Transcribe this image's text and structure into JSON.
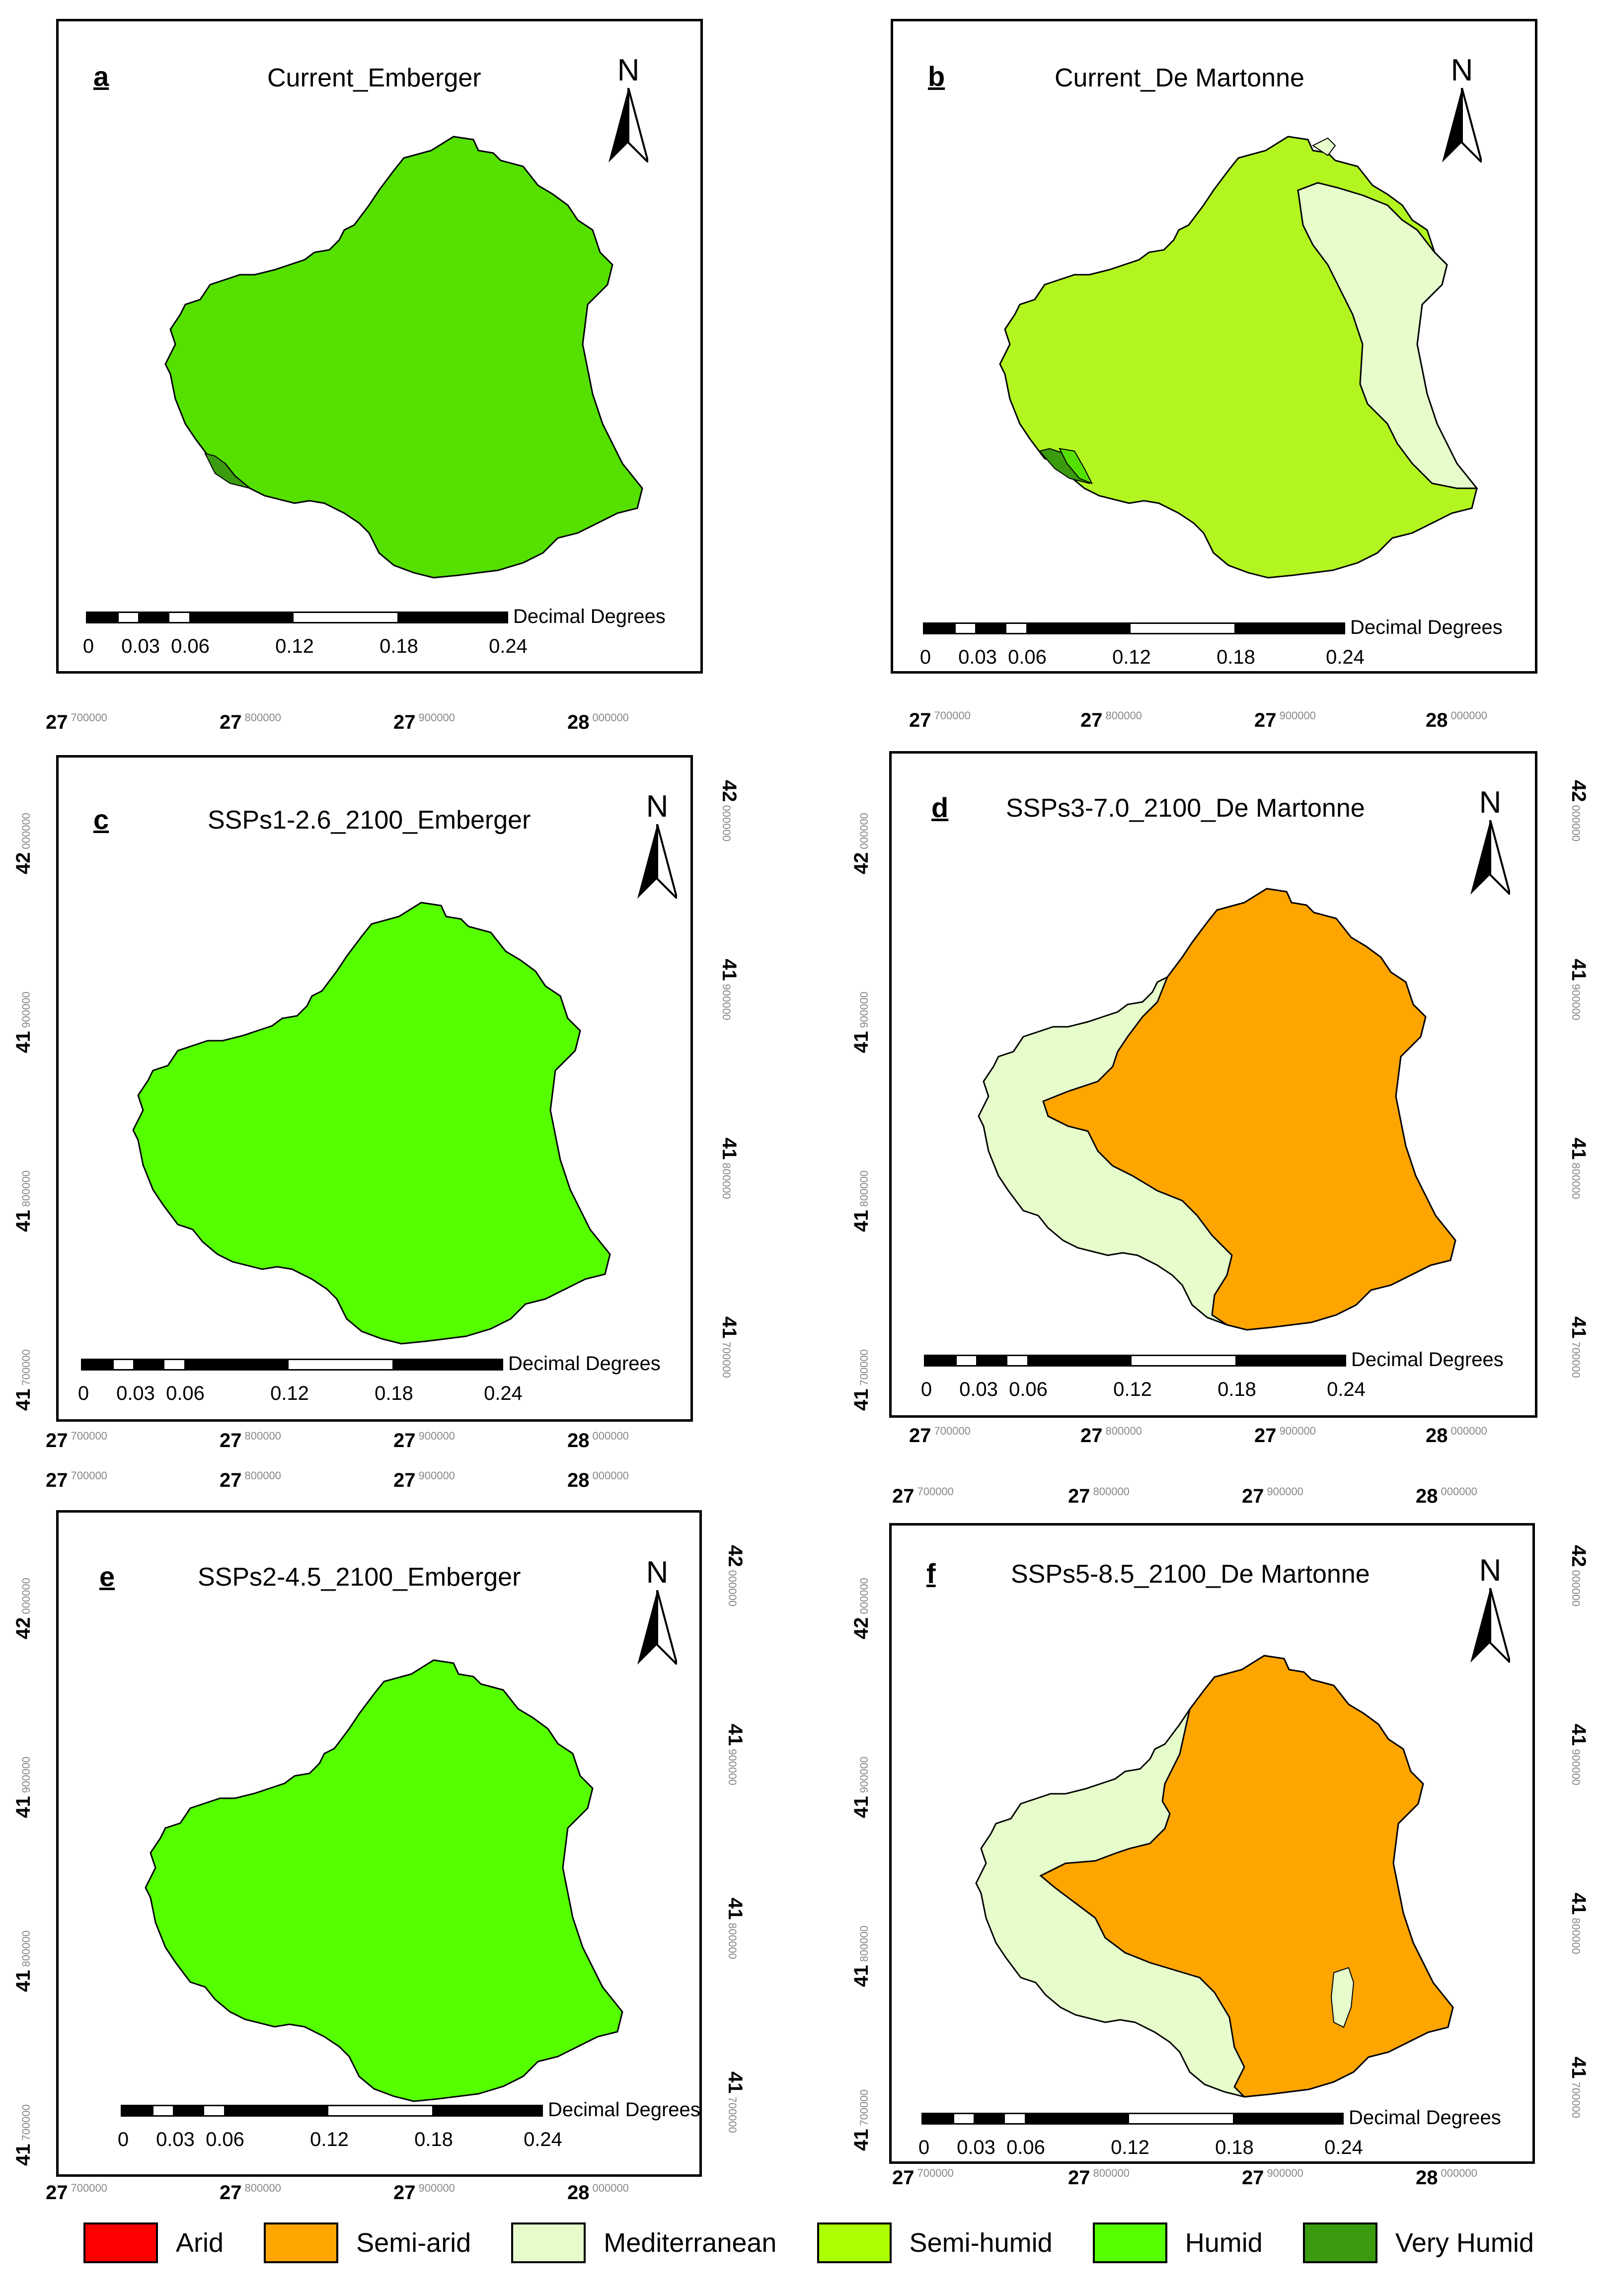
{
  "panels": [
    {
      "letter": "a",
      "title": "Current_Emberger"
    },
    {
      "letter": "b",
      "title": "Current_De Martonne"
    },
    {
      "letter": "c",
      "title": "SSPs1-2.6_2100_Emberger"
    },
    {
      "letter": "d",
      "title": "SSPs3-7.0_2100_De Martonne"
    },
    {
      "letter": "e",
      "title": "SSPs2-4.5_2100_Emberger"
    },
    {
      "letter": "f",
      "title": "SSPs5-8.5_2100_De Martonne"
    }
  ],
  "north_label": "N",
  "scale_bar": {
    "units": "Decimal Degrees",
    "labels": [
      "0",
      "0.03",
      "0.06",
      "0.12",
      "0.18",
      "0.24"
    ]
  },
  "graticule": {
    "lon": [
      {
        "major": "27",
        "minor": "700000"
      },
      {
        "major": "27",
        "minor": "800000"
      },
      {
        "major": "27",
        "minor": "900000"
      },
      {
        "major": "28",
        "minor": "000000"
      }
    ],
    "lat": [
      {
        "major": "42",
        "minor": "000000"
      },
      {
        "major": "41",
        "minor": "900000"
      },
      {
        "major": "41",
        "minor": "800000"
      },
      {
        "major": "41",
        "minor": "700000"
      }
    ]
  },
  "legend": [
    {
      "label": "Arid",
      "color": "#ff0000"
    },
    {
      "label": "Semi-arid",
      "color": "#ffa500"
    },
    {
      "label": "Mediterranean",
      "color": "#e6fccb"
    },
    {
      "label": "Semi-humid",
      "color": "#aaff00"
    },
    {
      "label": "Humid",
      "color": "#55ff00"
    },
    {
      "label": "Very Humid",
      "color": "#3a9b0e"
    }
  ]
}
